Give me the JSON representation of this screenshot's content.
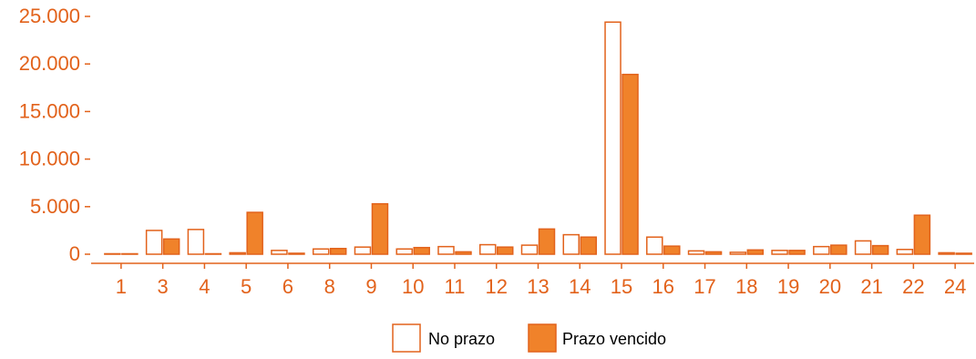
{
  "colors": {
    "accent": "#e2621b",
    "fill_vencido": "#f0822a",
    "fill_prazo": "#ffffff"
  },
  "legend": {
    "items": [
      {
        "label": "No prazo",
        "fill": "#ffffff",
        "stroke": "#e2621b"
      },
      {
        "label": "Prazo vencido",
        "fill": "#f0822a",
        "stroke": "#e2621b"
      }
    ]
  },
  "chart_data": {
    "type": "bar",
    "title": "",
    "xlabel": "",
    "ylabel": "",
    "ylim": [
      0,
      25500
    ],
    "yticks": [
      0,
      5000,
      10000,
      15000,
      20000,
      25000
    ],
    "ytick_labels": [
      "0",
      "5.000",
      "10.000",
      "15.000",
      "20.000",
      "25.000"
    ],
    "categories": [
      "1",
      "3",
      "4",
      "5",
      "6",
      "8",
      "9",
      "10",
      "11",
      "12",
      "13",
      "14",
      "15",
      "16",
      "17",
      "18",
      "19",
      "20",
      "21",
      "22",
      "24"
    ],
    "series": [
      {
        "name": "No prazo",
        "values": [
          50,
          2500,
          2600,
          150,
          400,
          550,
          750,
          550,
          800,
          1000,
          950,
          2050,
          24400,
          1800,
          350,
          200,
          400,
          800,
          1400,
          500,
          150
        ]
      },
      {
        "name": "Prazo vencido",
        "values": [
          30,
          1600,
          0,
          4400,
          100,
          600,
          5300,
          700,
          250,
          750,
          2650,
          1800,
          18900,
          850,
          250,
          450,
          400,
          950,
          900,
          4100,
          100
        ]
      }
    ],
    "grid": false,
    "legend_position": "bottom"
  }
}
